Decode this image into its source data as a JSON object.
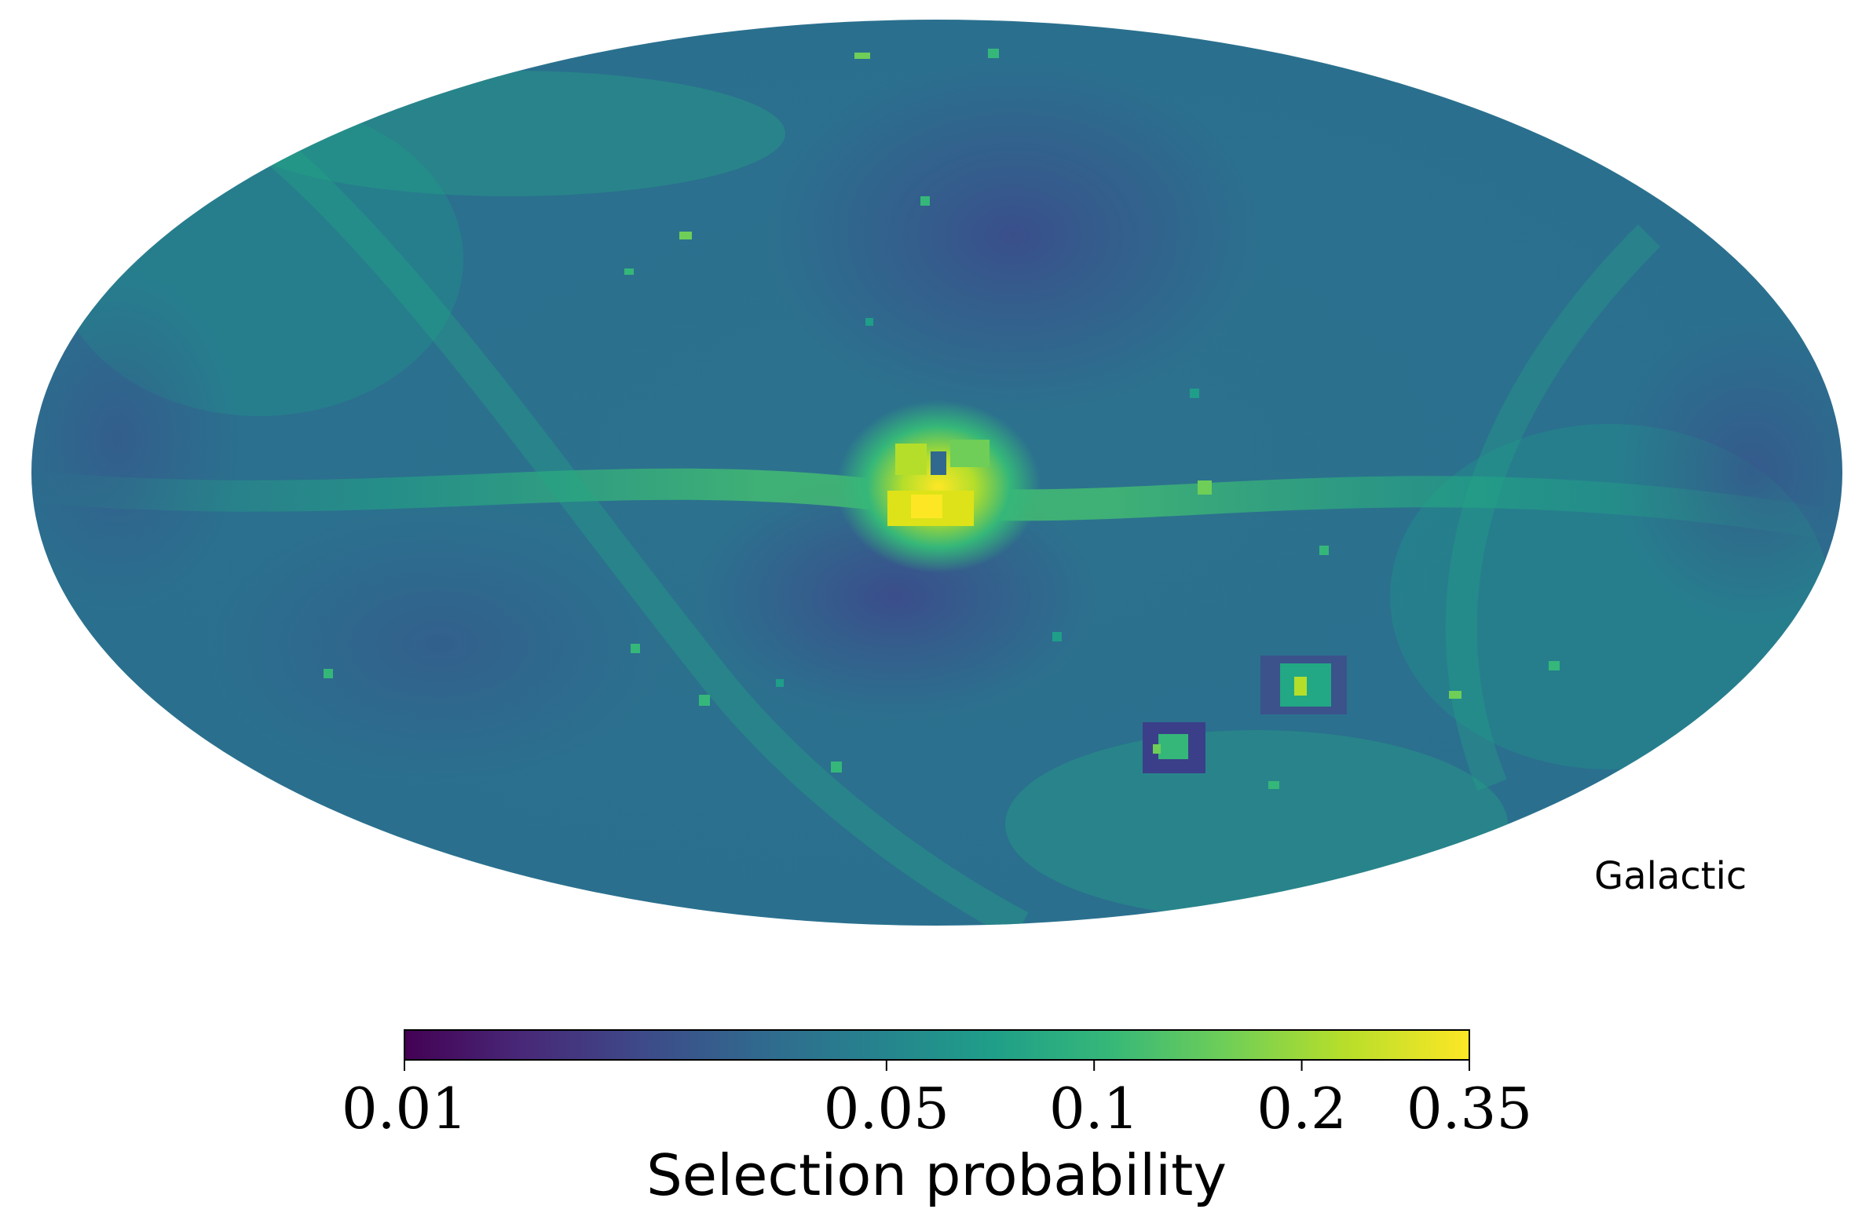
{
  "projection": "Mollweide",
  "coordinate_frame": "Galactic",
  "colormap": {
    "name": "viridis",
    "stops": [
      "#440154",
      "#482878",
      "#3e4989",
      "#31688e",
      "#26828e",
      "#1f9e89",
      "#35b779",
      "#6ece58",
      "#b5de2b",
      "#fde725"
    ],
    "scale": "log"
  },
  "colorbar": {
    "title": "Selection probability",
    "min": 0.01,
    "max": 0.35,
    "ticks": [
      {
        "value": 0.01,
        "label": "0.01"
      },
      {
        "value": 0.05,
        "label": "0.05"
      },
      {
        "value": 0.1,
        "label": "0.1"
      },
      {
        "value": 0.2,
        "label": "0.2"
      },
      {
        "value": 0.35,
        "label": "0.35"
      }
    ]
  },
  "chart_data": {
    "type": "heatmap",
    "map_type": "all-sky selection probability (Mollweide, Galactic)",
    "colorbar_label": "Selection probability",
    "range": [
      0.01,
      0.35
    ],
    "features": [
      {
        "feature": "background",
        "value": 0.045
      },
      {
        "feature": "galactic plane band",
        "value": 0.09
      },
      {
        "feature": "galactic center peak",
        "value": 0.33
      },
      {
        "feature": "bulge cutout low above center",
        "value": 0.025
      },
      {
        "feature": "bulge cutout low below center",
        "value": 0.02
      },
      {
        "feature": "LMC peak",
        "value": 0.22
      },
      {
        "feature": "SMC peak",
        "value": 0.15
      },
      {
        "feature": "LMC surrounding depression",
        "value": 0.025
      },
      {
        "feature": "SMC surrounding depression",
        "value": 0.02
      }
    ]
  }
}
